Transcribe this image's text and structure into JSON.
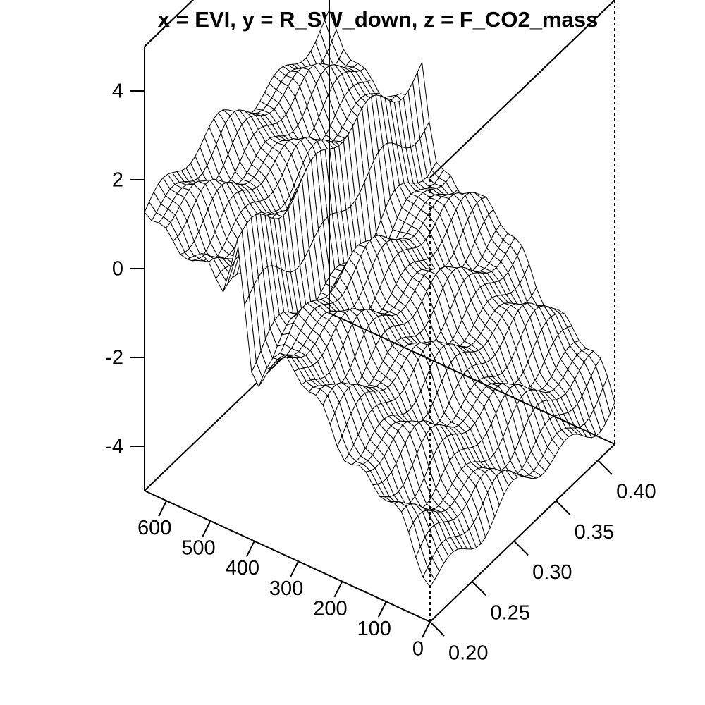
{
  "chart_data": {
    "type": "surface",
    "title": "x = EVI, y = R_SW_down, z = F_CO2_mass",
    "x": {
      "name": "EVI",
      "range": [
        0.2,
        0.42
      ],
      "ticks": [
        0.2,
        0.25,
        0.3,
        0.35,
        0.4
      ],
      "tick_labels": [
        "0.20",
        "0.25",
        "0.30",
        "0.35",
        "0.40"
      ]
    },
    "y": {
      "name": "R_SW_down",
      "range": [
        0,
        650
      ],
      "ticks": [
        0,
        100,
        200,
        300,
        400,
        500,
        600
      ],
      "tick_labels": [
        "0",
        "100",
        "200",
        "300",
        "400",
        "500",
        "600"
      ]
    },
    "z": {
      "name": "F_CO2_mass",
      "range": [
        -5,
        5
      ],
      "ticks": [
        -4,
        -2,
        0,
        2,
        4
      ],
      "tick_labels": [
        "-4",
        "-2",
        "0",
        "2",
        "4"
      ]
    },
    "grid_resolution": [
      40,
      40
    ],
    "surface_profile": {
      "y_values": [
        0,
        100,
        200,
        300,
        400,
        500,
        600,
        650
      ],
      "z_values": [
        -4.0,
        -2.8,
        -1.8,
        -1.0,
        -0.2,
        0.4,
        1.2,
        1.5
      ],
      "ridge_y": 440,
      "ridge_height": 1.6,
      "trough_y": 400,
      "trough_depth": -1.0
    },
    "grid": false,
    "legend": "none"
  }
}
